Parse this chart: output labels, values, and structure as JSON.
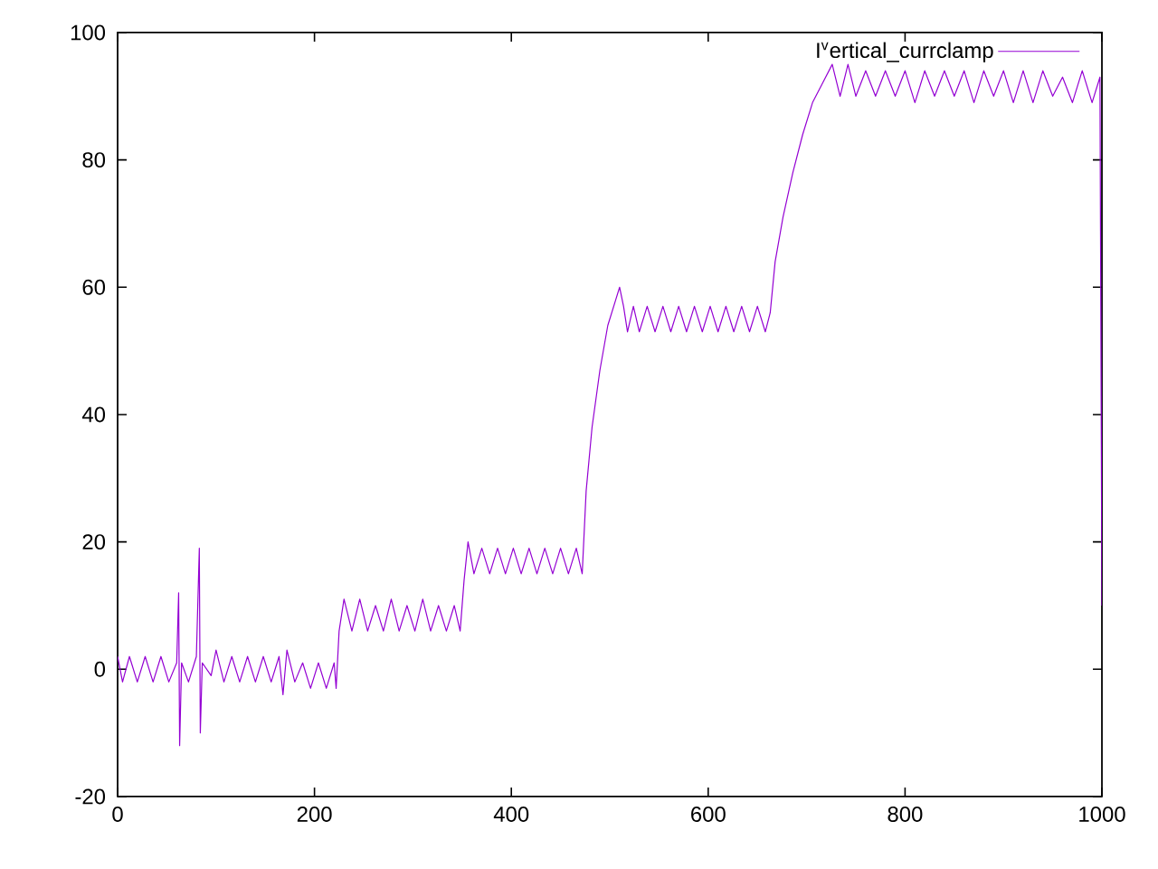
{
  "chart_data": {
    "type": "line",
    "xlim": [
      0,
      1000
    ],
    "ylim": [
      -20,
      100
    ],
    "xticks": [
      0,
      200,
      400,
      600,
      800,
      1000
    ],
    "yticks": [
      -20,
      0,
      20,
      40,
      60,
      80,
      100
    ],
    "legend": "top right",
    "line_style": "solid",
    "series": [
      {
        "name": "I$^{v}$ertical_currclamp",
        "color": "#9400d3",
        "x": [
          0,
          5,
          12,
          20,
          28,
          36,
          44,
          52,
          60,
          62,
          63,
          65,
          72,
          80,
          83,
          84,
          86,
          95,
          100,
          108,
          116,
          124,
          132,
          140,
          148,
          156,
          164,
          168,
          172,
          180,
          188,
          196,
          204,
          212,
          220,
          222,
          225,
          230,
          238,
          246,
          254,
          262,
          270,
          278,
          286,
          294,
          302,
          310,
          318,
          326,
          334,
          342,
          348,
          352,
          356,
          362,
          370,
          378,
          386,
          394,
          402,
          410,
          418,
          426,
          434,
          442,
          450,
          458,
          466,
          472,
          476,
          482,
          490,
          498,
          506,
          510,
          514,
          518,
          524,
          530,
          538,
          546,
          554,
          562,
          570,
          578,
          586,
          594,
          602,
          610,
          618,
          626,
          634,
          642,
          650,
          658,
          663,
          668,
          676,
          686,
          696,
          706,
          716,
          726,
          734,
          742,
          750,
          760,
          770,
          780,
          790,
          800,
          810,
          820,
          830,
          840,
          850,
          860,
          870,
          880,
          890,
          900,
          910,
          920,
          930,
          940,
          950,
          960,
          970,
          980,
          990,
          998,
          1000
        ],
        "values": [
          2,
          -2,
          2,
          -2,
          2,
          -2,
          2,
          -2,
          1,
          12,
          -12,
          1,
          -2,
          2,
          19,
          -10,
          1,
          -1,
          3,
          -2,
          2,
          -2,
          2,
          -2,
          2,
          -2,
          2,
          -4,
          3,
          -2,
          1,
          -3,
          1,
          -3,
          1,
          -3,
          6,
          11,
          6,
          11,
          6,
          10,
          6,
          11,
          6,
          10,
          6,
          11,
          6,
          10,
          6,
          10,
          6,
          14,
          20,
          15,
          19,
          15,
          19,
          15,
          19,
          15,
          19,
          15,
          19,
          15,
          19,
          15,
          19,
          15,
          28,
          38,
          47,
          54,
          58,
          60,
          57,
          53,
          57,
          53,
          57,
          53,
          57,
          53,
          57,
          53,
          57,
          53,
          57,
          53,
          57,
          53,
          57,
          53,
          57,
          53,
          56,
          64,
          71,
          78,
          84,
          89,
          92,
          95,
          90,
          95,
          90,
          94,
          90,
          94,
          90,
          94,
          89,
          94,
          90,
          94,
          90,
          94,
          89,
          94,
          90,
          94,
          89,
          94,
          89,
          94,
          90,
          93,
          89,
          94,
          89,
          93,
          10
        ]
      }
    ]
  }
}
